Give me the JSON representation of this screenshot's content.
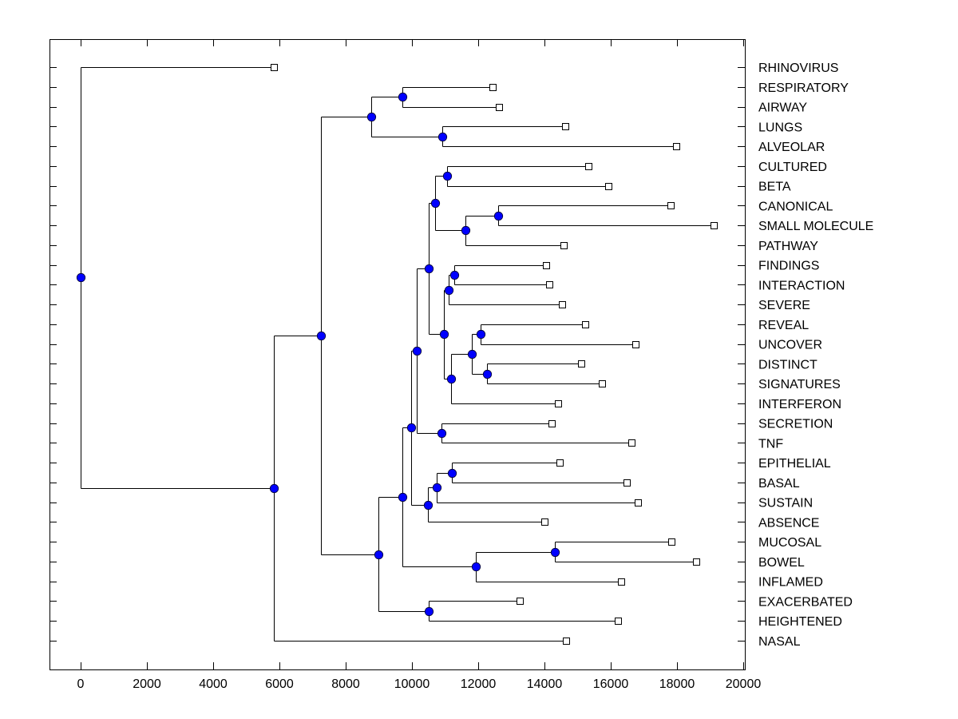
{
  "chart_data": {
    "type": "dendrogram",
    "title": "",
    "xlabel": "",
    "ylabel": "",
    "xlim": [
      -900,
      20100
    ],
    "xticks": [
      0,
      2000,
      4000,
      6000,
      8000,
      10000,
      12000,
      14000,
      16000,
      18000,
      20000
    ],
    "xtick_labels": [
      "0",
      "2000",
      "4000",
      "6000",
      "8000",
      "10000",
      "12000",
      "14000",
      "16000",
      "18000",
      "20000"
    ],
    "grid": false,
    "colors": {
      "node": "#0000ff",
      "leaf_fill": "#ffffff",
      "line": "#000000"
    },
    "leaves": [
      {
        "name": "RHINOVIRUS",
        "value": 5830
      },
      {
        "name": "RESPIRATORY",
        "value": 12430
      },
      {
        "name": "AIRWAY",
        "value": 12630
      },
      {
        "name": "LUNGS",
        "value": 14620
      },
      {
        "name": "ALVEOLAR",
        "value": 17970
      },
      {
        "name": "CULTURED",
        "value": 15320
      },
      {
        "name": "BETA",
        "value": 15930
      },
      {
        "name": "CANONICAL",
        "value": 17810
      },
      {
        "name": "SMALL MOLECULE",
        "value": 19110
      },
      {
        "name": "PATHWAY",
        "value": 14580
      },
      {
        "name": "FINDINGS",
        "value": 14050
      },
      {
        "name": "INTERACTION",
        "value": 14150
      },
      {
        "name": "SEVERE",
        "value": 14530
      },
      {
        "name": "REVEAL",
        "value": 15230
      },
      {
        "name": "UNCOVER",
        "value": 16750
      },
      {
        "name": "DISTINCT",
        "value": 15110
      },
      {
        "name": "SIGNATURES",
        "value": 15730
      },
      {
        "name": "INTERFERON",
        "value": 14400
      },
      {
        "name": "SECRETION",
        "value": 14210
      },
      {
        "name": "TNF",
        "value": 16620
      },
      {
        "name": "EPITHELIAL",
        "value": 14450
      },
      {
        "name": "BASAL",
        "value": 16480
      },
      {
        "name": "SUSTAIN",
        "value": 16820
      },
      {
        "name": "ABSENCE",
        "value": 13990
      },
      {
        "name": "MUCOSAL",
        "value": 17830
      },
      {
        "name": "BOWEL",
        "value": 18580
      },
      {
        "name": "INFLAMED",
        "value": 16310
      },
      {
        "name": "EXACERBATED",
        "value": 13250
      },
      {
        "name": "HEIGHTENED",
        "value": 16210
      },
      {
        "name": "NASAL",
        "value": 14640
      }
    ],
    "nodes": [
      {
        "id": "R",
        "value": 0,
        "children": [
          "L0",
          "NA"
        ]
      },
      {
        "id": "NA",
        "value": 5830,
        "children": [
          "NB",
          "L29"
        ]
      },
      {
        "id": "NB",
        "value": 7250,
        "children": [
          "NC",
          "ND"
        ]
      },
      {
        "id": "NC",
        "value": 8770,
        "children": [
          "NC1",
          "NC2"
        ]
      },
      {
        "id": "NC1",
        "value": 9710,
        "children": [
          "L1",
          "L2"
        ]
      },
      {
        "id": "NC2",
        "value": 10920,
        "children": [
          "L3",
          "L4"
        ]
      },
      {
        "id": "ND",
        "value": 8990,
        "children": [
          "NE",
          "NF"
        ]
      },
      {
        "id": "NE",
        "value": 9710,
        "children": [
          "NG",
          "NH"
        ]
      },
      {
        "id": "NF",
        "value": 10510,
        "children": [
          "L27",
          "L28"
        ]
      },
      {
        "id": "NG",
        "value": 9980,
        "children": [
          "NI",
          "NJ"
        ]
      },
      {
        "id": "NH",
        "value": 11930,
        "children": [
          "NH1",
          "L26"
        ]
      },
      {
        "id": "NH1",
        "value": 14310,
        "children": [
          "L24",
          "L25"
        ]
      },
      {
        "id": "NI",
        "value": 10140,
        "children": [
          "NK",
          "NL"
        ]
      },
      {
        "id": "NJ",
        "value": 10480,
        "children": [
          "NJ1",
          "L23"
        ]
      },
      {
        "id": "NJ1",
        "value": 10750,
        "children": [
          "NJ2",
          "L22"
        ]
      },
      {
        "id": "NJ2",
        "value": 11200,
        "children": [
          "L20",
          "L21"
        ]
      },
      {
        "id": "NK",
        "value": 10510,
        "children": [
          "NM",
          "NN"
        ]
      },
      {
        "id": "NL",
        "value": 10890,
        "children": [
          "L18",
          "L19"
        ]
      },
      {
        "id": "NM",
        "value": 10700,
        "children": [
          "NM1",
          "NM2"
        ]
      },
      {
        "id": "NM1",
        "value": 11060,
        "children": [
          "L5",
          "L6"
        ]
      },
      {
        "id": "NM2",
        "value": 11610,
        "children": [
          "NM3",
          "L9"
        ]
      },
      {
        "id": "NM3",
        "value": 12600,
        "children": [
          "L7",
          "L8"
        ]
      },
      {
        "id": "NN",
        "value": 10960,
        "children": [
          "NO",
          "NP"
        ]
      },
      {
        "id": "NO",
        "value": 11110,
        "children": [
          "NO1",
          "L12"
        ]
      },
      {
        "id": "NO1",
        "value": 11280,
        "children": [
          "L10",
          "L11"
        ]
      },
      {
        "id": "NP",
        "value": 11180,
        "children": [
          "NQ",
          "L17"
        ]
      },
      {
        "id": "NQ",
        "value": 11810,
        "children": [
          "NQ1",
          "NQ2"
        ]
      },
      {
        "id": "NQ1",
        "value": 12070,
        "children": [
          "L13",
          "L14"
        ]
      },
      {
        "id": "NQ2",
        "value": 12270,
        "children": [
          "L15",
          "L16"
        ]
      }
    ]
  }
}
